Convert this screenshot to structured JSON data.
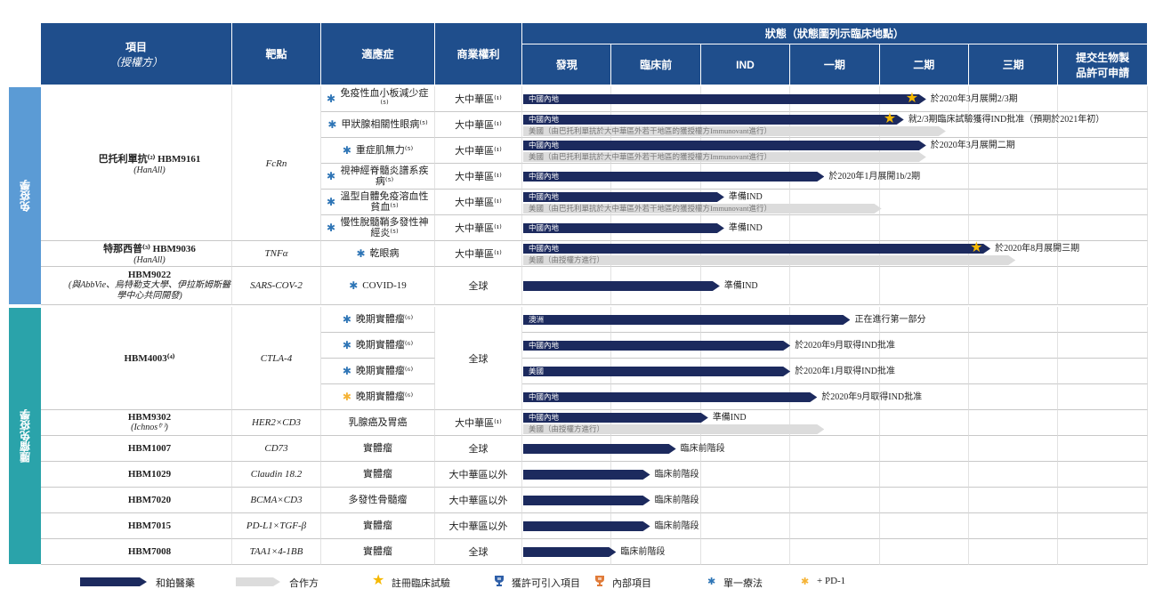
{
  "header": {
    "item": "項目",
    "licensor": "（授權方）",
    "target": "靶點",
    "indication": "適應症",
    "rights": "商業權利",
    "status": "狀態（狀態圖列示臨床地點）",
    "stages": [
      "發現",
      "臨床前",
      "IND",
      "一期",
      "二期",
      "三期",
      "提交生物製品許可申請"
    ]
  },
  "groups": [
    {
      "label": "免疫學",
      "color": "#5b9bd5",
      "products": [
        {
          "name": "巴托利單抗⁽²⁾ HBM9161",
          "partner": "(HanAll)",
          "icon_color": "#2e5fa8",
          "target": "FcRn",
          "rows": [
            {
              "indication": "免疫性血小板減少症⁽⁵⁾",
              "mark_color": "#2e75b6",
              "rights": "大中華區⁽¹⁾",
              "bars": [
                {
                  "kind": "dark",
                  "label": "中國內地",
                  "end": 4.51,
                  "star": true,
                  "note": "於2020年3月展開2/3期"
                }
              ]
            },
            {
              "indication": "甲狀腺相關性眼病⁽⁵⁾",
              "mark_color": "#2e75b6",
              "rights": "大中華區⁽¹⁾",
              "bars": [
                {
                  "kind": "dark",
                  "label": "中國內地",
                  "end": 4.26,
                  "star": true,
                  "note": "就2/3期臨床試驗獲得IND批准（預期於2021年初）"
                },
                {
                  "kind": "light",
                  "label": "美國（由巴托利單抗於大中華區外若干地區的獲授權方Immunovant進行）",
                  "end": 4.73
                }
              ]
            },
            {
              "indication": "重症肌無力⁽⁵⁾",
              "mark_color": "#2e75b6",
              "rights": "大中華區⁽¹⁾",
              "bars": [
                {
                  "kind": "dark",
                  "label": "中國內地",
                  "end": 4.51,
                  "note": "於2020年3月展開二期"
                },
                {
                  "kind": "light",
                  "label": "美國（由巴托利單抗於大中華區外若干地區的獲授權方Immunovant進行）",
                  "end": 4.51
                }
              ]
            },
            {
              "indication": "視神經脊髓炎譜系疾病⁽⁵⁾",
              "mark_color": "#2e75b6",
              "rights": "大中華區⁽¹⁾",
              "bars": [
                {
                  "kind": "dark",
                  "label": "中國內地",
                  "end": 3.37,
                  "note": "於2020年1月展開1b/2期"
                }
              ]
            },
            {
              "indication": "溫型自體免疫溶血性貧血⁽⁵⁾",
              "mark_color": "#2e75b6",
              "rights": "大中華區⁽¹⁾",
              "bars": [
                {
                  "kind": "dark",
                  "label": "中國內地",
                  "end": 2.25,
                  "note": "準備IND"
                },
                {
                  "kind": "light",
                  "label": "美國（由巴托利單抗於大中華區外若干地區的獲授權方Immunovant進行）",
                  "end": 4.01
                }
              ]
            },
            {
              "indication": "慢性脫髓鞘多發性神經炎⁽⁵⁾",
              "mark_color": "#2e75b6",
              "rights": "大中華區⁽¹⁾",
              "bars": [
                {
                  "kind": "dark",
                  "label": "中國內地",
                  "end": 2.25,
                  "note": "準備IND"
                }
              ]
            }
          ]
        },
        {
          "name": "特那西普⁽³⁾ HBM9036",
          "partner": "(HanAll)",
          "icon_color": "#2e5fa8",
          "target": "TNFα",
          "rows": [
            {
              "indication": "乾眼病",
              "mark_color": "#2e75b6",
              "rights": "大中華區⁽¹⁾",
              "bars": [
                {
                  "kind": "dark",
                  "label": "中國內地",
                  "end": 5.23,
                  "star": true,
                  "note": "於2020年8月展開三期"
                },
                {
                  "kind": "light",
                  "label": "美國（由授權方進行）",
                  "end": 5.51
                }
              ]
            }
          ]
        },
        {
          "name": "HBM9022",
          "partner": "(與AbbVie、烏特勒支大學、伊拉斯姆斯醫學中心共同開發)",
          "target": "SARS-COV-2",
          "rows": [
            {
              "indication": "COVID-19",
              "mark_color": "#2e75b6",
              "rights": "全球",
              "bars": [
                {
                  "kind": "dark",
                  "end": 2.2,
                  "note": "準備IND"
                }
              ]
            }
          ]
        }
      ]
    },
    {
      "label": "腫瘤免疫學",
      "color": "#2aa3aa",
      "products": [
        {
          "name": "HBM4003⁽⁴⁾",
          "icon_color": "#e07b39",
          "target": "CTLA-4",
          "rights": "全球",
          "rows": [
            {
              "indication": "晚期實體瘤⁽⁶⁾",
              "mark_color": "#2e75b6",
              "bars": [
                {
                  "kind": "dark",
                  "label": "澳洲",
                  "end": 3.66,
                  "note": "正在進行第一部分"
                }
              ]
            },
            {
              "indication": "晚期實體瘤⁽⁶⁾",
              "mark_color": "#2e75b6",
              "bars": [
                {
                  "kind": "dark",
                  "label": "中國內地",
                  "end": 2.99,
                  "note": "於2020年9月取得IND批准"
                }
              ]
            },
            {
              "indication": "晚期實體瘤⁽⁶⁾",
              "mark_color": "#2e75b6",
              "bars": [
                {
                  "kind": "dark",
                  "label": "美國",
                  "end": 2.99,
                  "note": "於2020年1月取得IND批准"
                }
              ]
            },
            {
              "indication": "晚期實體瘤⁽⁶⁾",
              "mark_color": "#f5b335",
              "bars": [
                {
                  "kind": "dark",
                  "label": "中國內地",
                  "end": 3.29,
                  "note": "於2020年9月取得IND批准"
                }
              ]
            }
          ]
        },
        {
          "name": "HBM9302",
          "partner": "(Ichnos⁽⁷⁾)",
          "icon_color": "#2e5fa8",
          "target": "HER2×CD3",
          "rows": [
            {
              "indication": "乳腺癌及胃癌",
              "rights": "大中華區⁽¹⁾",
              "bars": [
                {
                  "kind": "dark",
                  "label": "中國內地",
                  "end": 2.07,
                  "note": "準備IND"
                },
                {
                  "kind": "light",
                  "label": "美國（由授權方進行）",
                  "end": 3.37
                }
              ]
            }
          ]
        },
        {
          "name": "HBM1007",
          "icon_color": "#e07b39",
          "target": "CD73",
          "rows": [
            {
              "indication": "實體瘤",
              "rights": "全球",
              "bars": [
                {
                  "kind": "dark",
                  "end": 1.71,
                  "note": "臨床前階段"
                }
              ]
            }
          ]
        },
        {
          "name": "HBM1029",
          "icon_color": "#e07b39",
          "target": "Claudin 18.2",
          "rows": [
            {
              "indication": "實體瘤",
              "rights": "大中華區以外",
              "bars": [
                {
                  "kind": "dark",
                  "end": 1.42,
                  "note": "臨床前階段"
                }
              ]
            }
          ]
        },
        {
          "name": "HBM7020",
          "icon_color": "#e07b39",
          "target": "BCMA×CD3",
          "rows": [
            {
              "indication": "多發性骨髓瘤",
              "rights": "大中華區以外",
              "bars": [
                {
                  "kind": "dark",
                  "end": 1.42,
                  "note": "臨床前階段"
                }
              ]
            }
          ]
        },
        {
          "name": "HBM7015",
          "icon_color": "#e07b39",
          "target": "PD-L1×TGF-β",
          "rows": [
            {
              "indication": "實體瘤",
              "rights": "大中華區以外",
              "bars": [
                {
                  "kind": "dark",
                  "end": 1.42,
                  "note": "臨床前階段"
                }
              ]
            }
          ]
        },
        {
          "name": "HBM7008",
          "icon_color": "#e07b39",
          "target": "TAA1×4-1BB",
          "rows": [
            {
              "indication": "實體瘤",
              "rights": "全球",
              "bars": [
                {
                  "kind": "dark",
                  "end": 1.04,
                  "note": "臨床前階段"
                }
              ]
            }
          ]
        }
      ]
    }
  ],
  "legend": [
    {
      "kind": "dark",
      "label": "和鉑醫藥"
    },
    {
      "kind": "light",
      "label": "合作方"
    },
    {
      "kind": "star",
      "label": "註冊臨床試驗"
    },
    {
      "kind": "icon",
      "color": "#2e5fa8",
      "label": "獲許可引入項目"
    },
    {
      "kind": "icon",
      "color": "#e07b39",
      "label": "內部項目"
    },
    {
      "kind": "mark",
      "color": "#2e75b6",
      "label": "單一療法"
    },
    {
      "kind": "mark",
      "color": "#f5b335",
      "label": "+ PD-1"
    }
  ]
}
